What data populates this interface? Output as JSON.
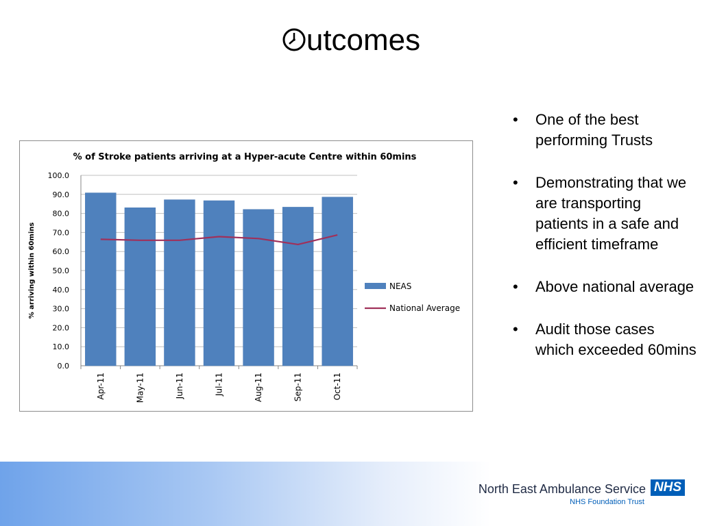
{
  "slide": {
    "title_suffix": "utcomes",
    "title_icon": "clock-icon"
  },
  "bullets": [
    "One of the best performing Trusts",
    "Demonstrating that we are transporting patients in a safe and efficient timeframe",
    "Above national average",
    "Audit those cases which exceeded 60mins"
  ],
  "footer": {
    "org_name": "North East Ambulance Service",
    "nhs_mark": "NHS",
    "trust_label": "NHS Foundation Trust"
  },
  "chart_data": {
    "type": "bar",
    "title": "% of Stroke patients arriving at a Hyper-acute Centre within 60mins",
    "xlabel": "",
    "ylabel": "% arriving within 60mins",
    "ylim": [
      0,
      100
    ],
    "yticks": [
      "0.0",
      "10.0",
      "20.0",
      "30.0",
      "40.0",
      "50.0",
      "60.0",
      "70.0",
      "80.0",
      "90.0",
      "100.0"
    ],
    "categories": [
      "Apr-11",
      "May-11",
      "Jun-11",
      "Jul-11",
      "Aug-11",
      "Sep-11",
      "Oct-11"
    ],
    "series": [
      {
        "name": "NEAS",
        "type": "bar",
        "color": "#4f81bd",
        "values": [
          90.8,
          83.0,
          87.2,
          86.7,
          82.1,
          83.3,
          88.6
        ]
      },
      {
        "name": "National Average",
        "type": "line",
        "color": "#a0305a",
        "values": [
          66.4,
          65.9,
          65.9,
          67.8,
          66.8,
          63.7,
          68.7
        ]
      }
    ],
    "grid": true,
    "legend_position": "right"
  }
}
